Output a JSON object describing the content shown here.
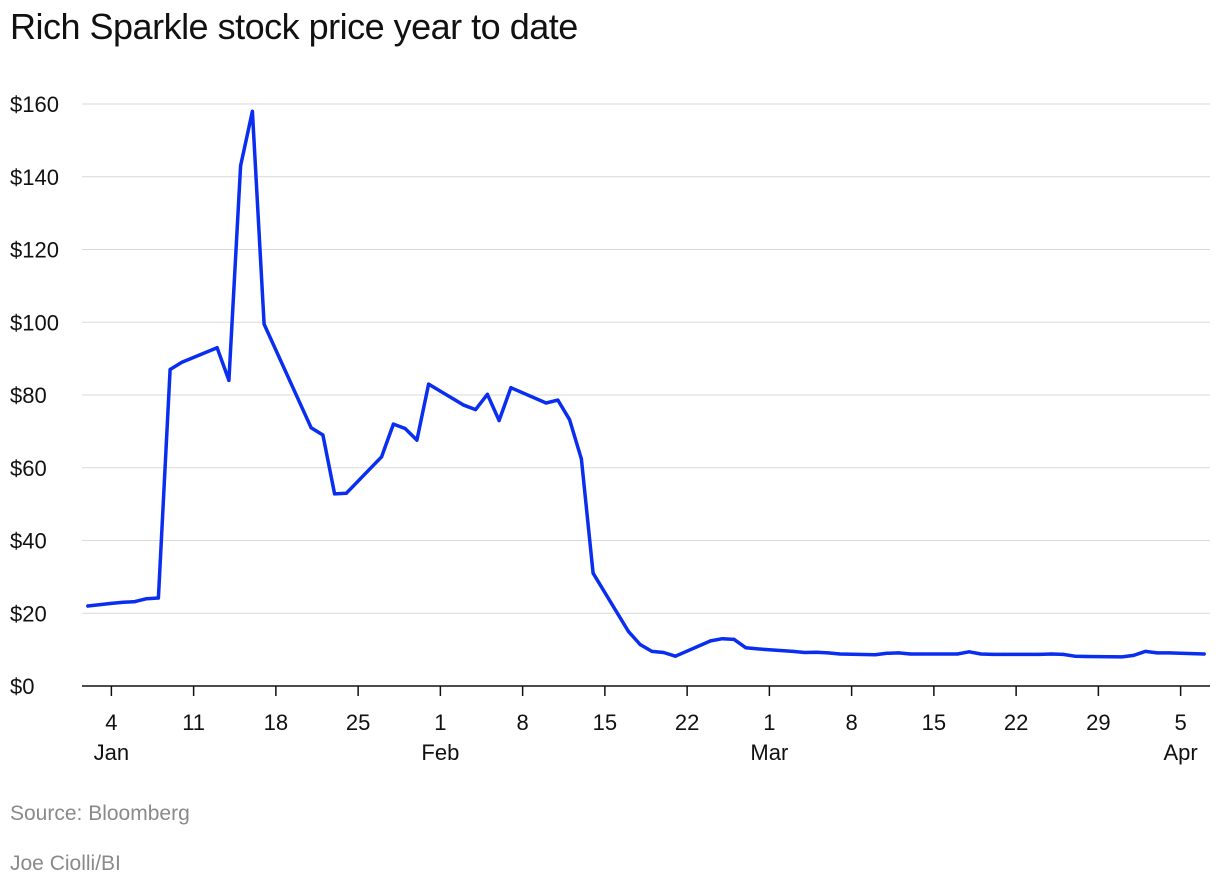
{
  "chart_data": {
    "type": "line",
    "title": "Rich Sparkle stock price year to date",
    "xlabel": "",
    "ylabel": "",
    "ylim": [
      0,
      160
    ],
    "yticks": [
      0,
      20,
      40,
      60,
      80,
      100,
      120,
      140,
      160
    ],
    "ytick_labels": [
      "$0",
      "$20",
      "$40",
      "$60",
      "$80",
      "$100",
      "$120",
      "$140",
      "$160"
    ],
    "grid": true,
    "x_unit": "days since Jan 1 2021",
    "xlim": [
      1.5,
      97.5
    ],
    "xticks": [
      {
        "day": 4,
        "label": "4",
        "month": "Jan"
      },
      {
        "day": 11,
        "label": "11",
        "month": ""
      },
      {
        "day": 18,
        "label": "18",
        "month": ""
      },
      {
        "day": 25,
        "label": "25",
        "month": ""
      },
      {
        "day": 32,
        "label": "1",
        "month": "Feb"
      },
      {
        "day": 39,
        "label": "8",
        "month": ""
      },
      {
        "day": 46,
        "label": "15",
        "month": ""
      },
      {
        "day": 53,
        "label": "22",
        "month": ""
      },
      {
        "day": 60,
        "label": "1",
        "month": "Mar"
      },
      {
        "day": 67,
        "label": "8",
        "month": ""
      },
      {
        "day": 74,
        "label": "15",
        "month": ""
      },
      {
        "day": 81,
        "label": "22",
        "month": ""
      },
      {
        "day": 88,
        "label": "29",
        "month": ""
      },
      {
        "day": 95,
        "label": "5",
        "month": "Apr"
      }
    ],
    "series": [
      {
        "name": "Rich Sparkle",
        "color": "#0a2ef0",
        "x": [
          2,
          4,
          5,
          6,
          7,
          8,
          9,
          10,
          13,
          14,
          15,
          16,
          17,
          21,
          22,
          23,
          24,
          27,
          28,
          29,
          30,
          31,
          34,
          35,
          36,
          37,
          38,
          41,
          42,
          43,
          44,
          45,
          48,
          49,
          50,
          51,
          52,
          55,
          56,
          57,
          58,
          59,
          62,
          63,
          64,
          65,
          66,
          69,
          70,
          71,
          72,
          73,
          76,
          77,
          78,
          79,
          80,
          83,
          84,
          85,
          86,
          87,
          90,
          91,
          92,
          93,
          94,
          97
        ],
        "y": [
          22,
          22.7,
          23,
          23.2,
          24,
          24.2,
          87,
          89,
          93,
          84,
          143,
          158,
          99.5,
          71,
          69,
          52.8,
          53,
          63,
          72,
          70.8,
          67.6,
          83,
          77.2,
          76,
          80.2,
          73,
          82,
          77.8,
          78.6,
          73.2,
          62.4,
          31,
          15,
          11.4,
          9.5,
          9.2,
          8.2,
          12.4,
          13,
          12.8,
          10.5,
          10.2,
          9.5,
          9.2,
          9.3,
          9.1,
          8.8,
          8.6,
          9,
          9.1,
          8.8,
          8.8,
          8.8,
          9.4,
          8.8,
          8.7,
          8.7,
          8.7,
          8.8,
          8.7,
          8.2,
          8.1,
          8,
          8.4,
          9.5,
          9.1,
          9.1,
          8.8
        ]
      }
    ]
  },
  "footer": {
    "source": "Source: Bloomberg",
    "credit": "Joe Ciolli/BI"
  }
}
